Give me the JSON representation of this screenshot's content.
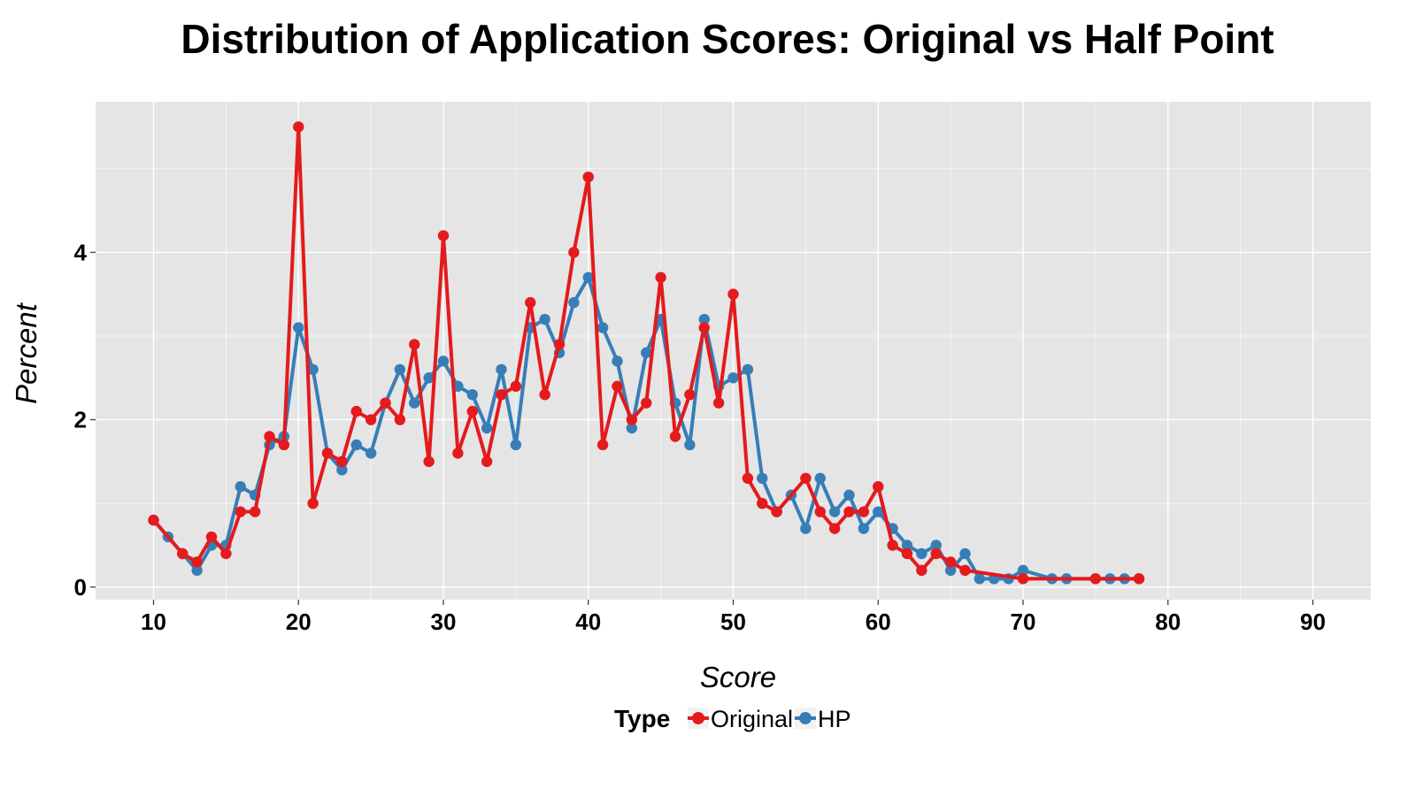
{
  "chart_data": {
    "type": "line",
    "title": "Distribution of Application Scores: Original vs Half Point",
    "xlabel": "Score",
    "ylabel": "Percent",
    "xlim": [
      6,
      94
    ],
    "ylim": [
      -0.15,
      5.8
    ],
    "xticks": [
      10,
      20,
      30,
      40,
      50,
      60,
      70,
      80,
      90
    ],
    "yticks": [
      0,
      2,
      4
    ],
    "grid": true,
    "legend": {
      "title": "Type",
      "position": "bottom"
    },
    "colors": {
      "panel": "#e5e5e5",
      "grid": "#ffffff"
    },
    "series": [
      {
        "name": "HP",
        "color": "#377eb8",
        "x": [
          10,
          11,
          12,
          13,
          14,
          15,
          16,
          17,
          18,
          19,
          20,
          21,
          22,
          23,
          24,
          25,
          26,
          27,
          28,
          29,
          30,
          31,
          32,
          33,
          34,
          35,
          36,
          37,
          38,
          39,
          40,
          41,
          42,
          43,
          44,
          45,
          46,
          47,
          48,
          49,
          50,
          51,
          52,
          53,
          54,
          55,
          56,
          57,
          58,
          59,
          60,
          61,
          62,
          63,
          64,
          65,
          66,
          67,
          68,
          69,
          70,
          72,
          73,
          75,
          76,
          77,
          78
        ],
        "y": [
          0.8,
          0.6,
          0.4,
          0.2,
          0.5,
          0.5,
          1.2,
          1.1,
          1.7,
          1.8,
          3.1,
          2.6,
          1.6,
          1.4,
          1.7,
          1.6,
          2.2,
          2.6,
          2.2,
          2.5,
          2.7,
          2.4,
          2.3,
          1.9,
          2.6,
          1.7,
          3.1,
          3.2,
          2.8,
          3.4,
          3.7,
          3.1,
          2.7,
          1.9,
          2.8,
          3.2,
          2.2,
          1.7,
          3.2,
          2.4,
          2.5,
          2.6,
          1.3,
          0.9,
          1.1,
          0.7,
          1.3,
          0.9,
          1.1,
          0.7,
          0.9,
          0.7,
          0.5,
          0.4,
          0.5,
          0.2,
          0.4,
          0.1,
          0.1,
          0.1,
          0.2,
          0.1,
          0.1,
          0.1,
          0.1,
          0.1,
          0.1
        ]
      },
      {
        "name": "Original",
        "color": "#e41a1c",
        "x": [
          10,
          12,
          13,
          14,
          15,
          16,
          17,
          18,
          19,
          20,
          21,
          22,
          23,
          24,
          25,
          26,
          27,
          28,
          29,
          30,
          31,
          32,
          33,
          34,
          35,
          36,
          37,
          38,
          39,
          40,
          41,
          42,
          43,
          44,
          45,
          46,
          47,
          48,
          49,
          50,
          51,
          52,
          53,
          55,
          56,
          57,
          58,
          59,
          60,
          61,
          62,
          63,
          64,
          65,
          66,
          70,
          75,
          78
        ],
        "y": [
          0.8,
          0.4,
          0.3,
          0.6,
          0.4,
          0.9,
          0.9,
          1.8,
          1.7,
          5.5,
          1.0,
          1.6,
          1.5,
          2.1,
          2.0,
          2.2,
          2.0,
          2.9,
          1.5,
          4.2,
          1.6,
          2.1,
          1.5,
          2.3,
          2.4,
          3.4,
          2.3,
          2.9,
          4.0,
          4.9,
          1.7,
          2.4,
          2.0,
          2.2,
          3.7,
          1.8,
          2.3,
          3.1,
          2.2,
          3.5,
          1.3,
          1.0,
          0.9,
          1.3,
          0.9,
          0.7,
          0.9,
          0.9,
          1.2,
          0.5,
          0.4,
          0.2,
          0.4,
          0.3,
          0.2,
          0.1,
          0.1,
          0.1
        ]
      }
    ]
  }
}
